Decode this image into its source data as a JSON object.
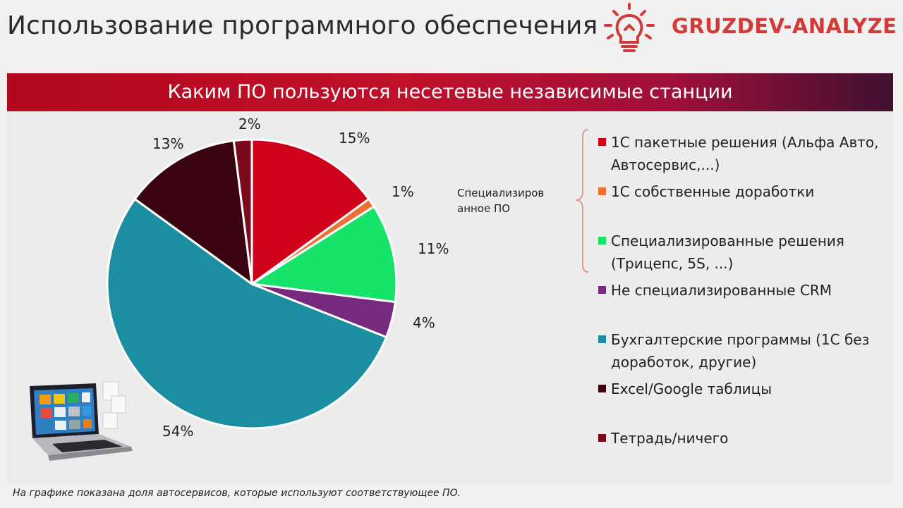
{
  "header": {
    "title": "Использование программного обеспечения",
    "brand": "GRUZDEV-ANALYZE"
  },
  "banner": {
    "title": "Каким ПО пользуются несетевые независимые станции"
  },
  "group_label": "Специализиров анное ПО",
  "footnote": "На графике показана доля автосервисов, которые используют соответствующее ПО.",
  "chart_data": {
    "type": "pie",
    "title": "Каким ПО пользуются несетевые независимые станции",
    "unit": "%",
    "slices": [
      {
        "label": "1С пакетные решения (Альфа Авто, Автосервис,...)",
        "value": 15,
        "display": "15%",
        "color": "#d0021b"
      },
      {
        "label": "1С собственные доработки",
        "value": 1,
        "display": "1%",
        "color": "#ee7033"
      },
      {
        "label": "Специализированные решения (Трицепс, 5S, ...)",
        "value": 11,
        "display": "11%",
        "color": "#16e36a"
      },
      {
        "label": "Не специализированные CRM",
        "value": 4,
        "display": "4%",
        "color": "#762a7e"
      },
      {
        "label": "Бухгалтерские программы (1С без доработок, другие)",
        "value": 54,
        "display": "54%",
        "color": "#1b8ea2"
      },
      {
        "label": "Excel/Google таблицы",
        "value": 13,
        "display": "13%",
        "color": "#3a0410"
      },
      {
        "label": "Тетрадь/ничего",
        "value": 2,
        "display": "2%",
        "color": "#7d0a1c"
      }
    ],
    "legend": {
      "position": "right",
      "items": [
        "1С пакетные решения (Альфа Авто, Автосервис,...)",
        "1С собственные доработки",
        "Специализированные решения (Трицепс, 5S, ...)",
        "Не специализированные CRM",
        "Бухгалтерские программы (1С без доработок, другие)",
        "Excel/Google таблицы",
        "Тетрадь/ничего"
      ]
    }
  }
}
